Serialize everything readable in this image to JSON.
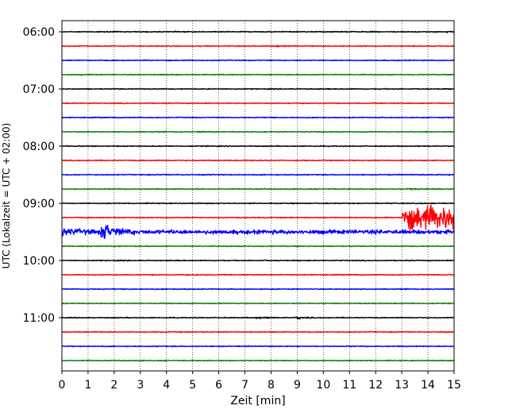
{
  "chart_data": {
    "type": "line",
    "title": "",
    "xlabel": "Zeit  [min]",
    "ylabel": "UTC (Lokalzeit = UTC + 02:00)",
    "xlim": [
      0,
      15
    ],
    "x_ticks": [
      "0",
      "1",
      "2",
      "3",
      "4",
      "5",
      "6",
      "7",
      "8",
      "9",
      "10",
      "11",
      "12",
      "13",
      "14",
      "15"
    ],
    "y_ticks": [
      {
        "label": "06:00",
        "trace": 0
      },
      {
        "label": "07:00",
        "trace": 4
      },
      {
        "label": "08:00",
        "trace": 8
      },
      {
        "label": "09:00",
        "trace": 12
      },
      {
        "label": "10:00",
        "trace": 16
      },
      {
        "label": "11:00",
        "trace": 20
      }
    ],
    "grid": "vertical dotted",
    "trace_interval_min": 15,
    "trace_colors": [
      "#000000",
      "#ff0000",
      "#0000ff",
      "#008000"
    ],
    "traces": [
      {
        "start": "06:00",
        "color": "#000000",
        "amp": 0.09,
        "events": [
          {
            "x": 14.7,
            "amp": 0.18,
            "width": 0.3
          }
        ]
      },
      {
        "start": "06:15",
        "color": "#ff0000",
        "amp": 0.09,
        "events": [
          {
            "x": 8.2,
            "amp": 0.2,
            "width": 0.15
          }
        ]
      },
      {
        "start": "06:30",
        "color": "#0000ff",
        "amp": 0.09,
        "events": []
      },
      {
        "start": "06:45",
        "color": "#008000",
        "amp": 0.09,
        "events": []
      },
      {
        "start": "07:00",
        "color": "#000000",
        "amp": 0.09,
        "events": []
      },
      {
        "start": "07:15",
        "color": "#ff0000",
        "amp": 0.09,
        "events": []
      },
      {
        "start": "07:30",
        "color": "#0000ff",
        "amp": 0.09,
        "events": []
      },
      {
        "start": "07:45",
        "color": "#008000",
        "amp": 0.09,
        "events": [
          {
            "x": 5.2,
            "amp": 0.2,
            "width": 0.1
          }
        ]
      },
      {
        "start": "08:00",
        "color": "#000000",
        "amp": 0.09,
        "events": []
      },
      {
        "start": "08:15",
        "color": "#ff0000",
        "amp": 0.09,
        "events": []
      },
      {
        "start": "08:30",
        "color": "#0000ff",
        "amp": 0.09,
        "events": []
      },
      {
        "start": "08:45",
        "color": "#008000",
        "amp": 0.09,
        "events": [
          {
            "x": 13.2,
            "amp": 0.15,
            "width": 0.5
          }
        ]
      },
      {
        "start": "09:00",
        "color": "#000000",
        "amp": 0.09,
        "events": []
      },
      {
        "start": "09:15",
        "color": "#ff0000",
        "amp": 0.09,
        "events": [
          {
            "x": 13.0,
            "amp": 2.3,
            "width": 2.0
          }
        ]
      },
      {
        "start": "09:30",
        "color": "#0000ff",
        "amp": 0.4,
        "events": [
          {
            "x": 1.5,
            "amp": 1.6,
            "width": 0.25
          },
          {
            "x": 0.0,
            "amp": 0.7,
            "width": 1.5
          },
          {
            "x": 6.4,
            "amp": 0.3,
            "width": 0.2
          },
          {
            "x": 10.1,
            "amp": 0.3,
            "width": 0.2
          }
        ]
      },
      {
        "start": "09:45",
        "color": "#008000",
        "amp": 0.09,
        "events": []
      },
      {
        "start": "10:00",
        "color": "#000000",
        "amp": 0.09,
        "events": []
      },
      {
        "start": "10:15",
        "color": "#ff0000",
        "amp": 0.09,
        "events": [
          {
            "x": 5.1,
            "amp": 0.18,
            "width": 0.1
          }
        ]
      },
      {
        "start": "10:30",
        "color": "#0000ff",
        "amp": 0.09,
        "events": []
      },
      {
        "start": "10:45",
        "color": "#008000",
        "amp": 0.09,
        "events": []
      },
      {
        "start": "11:00",
        "color": "#000000",
        "amp": 0.09,
        "events": [
          {
            "x": 7.4,
            "amp": 0.22,
            "width": 0.2
          },
          {
            "x": 8.95,
            "amp": 0.28,
            "width": 0.15
          }
        ]
      },
      {
        "start": "11:15",
        "color": "#ff0000",
        "amp": 0.09,
        "events": []
      },
      {
        "start": "11:30",
        "color": "#0000ff",
        "amp": 0.09,
        "events": []
      },
      {
        "start": "11:45",
        "color": "#008000",
        "amp": 0.09,
        "events": []
      }
    ]
  }
}
